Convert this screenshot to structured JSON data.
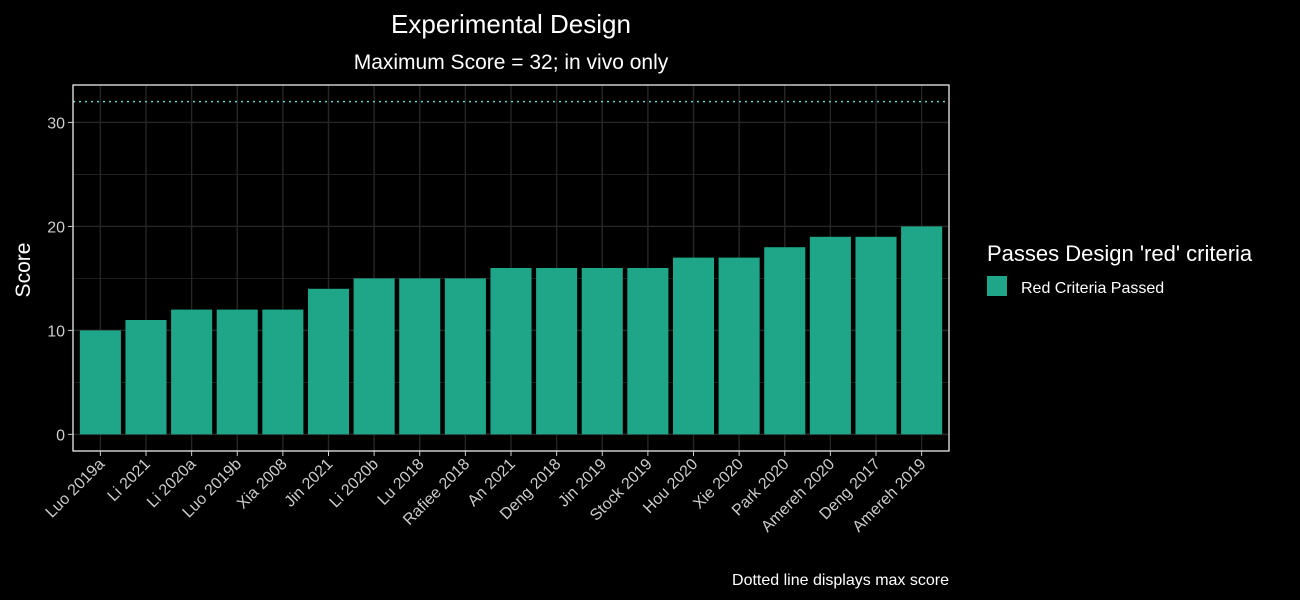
{
  "chart_data": {
    "type": "bar",
    "title": "Experimental Design",
    "subtitle": "Maximum Score = 32;  in vivo only",
    "xlabel": "",
    "ylabel": "Score",
    "categories": [
      "Luo 2019a",
      "Li 2021",
      "Li 2020a",
      "Luo 2019b",
      "Xia 2008",
      "Jin 2021",
      "Li 2020b",
      "Lu 2018",
      "Rafiee 2018",
      "An 2021",
      "Deng 2018",
      "Jin 2019",
      "Stock 2019",
      "Hou 2020",
      "Xie 2020",
      "Park 2020",
      "Amereh 2020",
      "Deng 2017",
      "Amereh 2019"
    ],
    "series": [
      {
        "name": "Red Criteria Passed",
        "color": "#1fa688",
        "values": [
          10,
          11,
          12,
          12,
          12,
          14,
          15,
          15,
          15,
          16,
          16,
          16,
          16,
          17,
          17,
          18,
          19,
          19,
          20
        ]
      }
    ],
    "ylim": [
      -1.6,
      33.6
    ],
    "yticks": [
      0,
      10,
      20,
      30
    ],
    "reference_line": {
      "value": 32,
      "style": "dotted",
      "color": "#66cccc"
    },
    "legend": {
      "title": "Passes Design 'red' criteria",
      "position": "right"
    },
    "caption": "Dotted line displays max score",
    "grid": true,
    "colors": {
      "background": "#000000",
      "panel_border": "#ffffff",
      "grid": "#262626",
      "bar": "#1fa688"
    }
  }
}
